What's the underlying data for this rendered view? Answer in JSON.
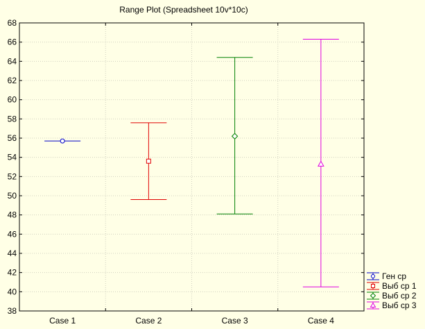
{
  "chart_data": {
    "type": "range",
    "title": "Range Plot (Spreadsheet 10v*10c)",
    "xlabel": "",
    "ylabel": "",
    "ylim": [
      38,
      68
    ],
    "yticks": [
      38,
      40,
      42,
      44,
      46,
      48,
      50,
      52,
      54,
      56,
      58,
      60,
      62,
      64,
      66,
      68
    ],
    "grid": true,
    "legend_position": "bottom-right",
    "categories": [
      "Case 1",
      "Case 2",
      "Case 3",
      "Case 4"
    ],
    "series": [
      {
        "name": "Ген ср",
        "category": "Case 1",
        "center": 55.7,
        "low": 55.7,
        "high": 55.7,
        "color": "#0000C8",
        "marker": "circle"
      },
      {
        "name": "Выб ср 1",
        "category": "Case 2",
        "center": 53.6,
        "low": 49.6,
        "high": 57.6,
        "color": "#E00000",
        "marker": "square"
      },
      {
        "name": "Выб ср 2",
        "category": "Case 3",
        "center": 56.2,
        "low": 48.1,
        "high": 64.4,
        "color": "#008000",
        "marker": "diamond"
      },
      {
        "name": "Выб ср 3",
        "category": "Case 4",
        "center": 53.3,
        "low": 40.5,
        "high": 66.3,
        "color": "#E000E0",
        "marker": "triangle"
      }
    ]
  }
}
